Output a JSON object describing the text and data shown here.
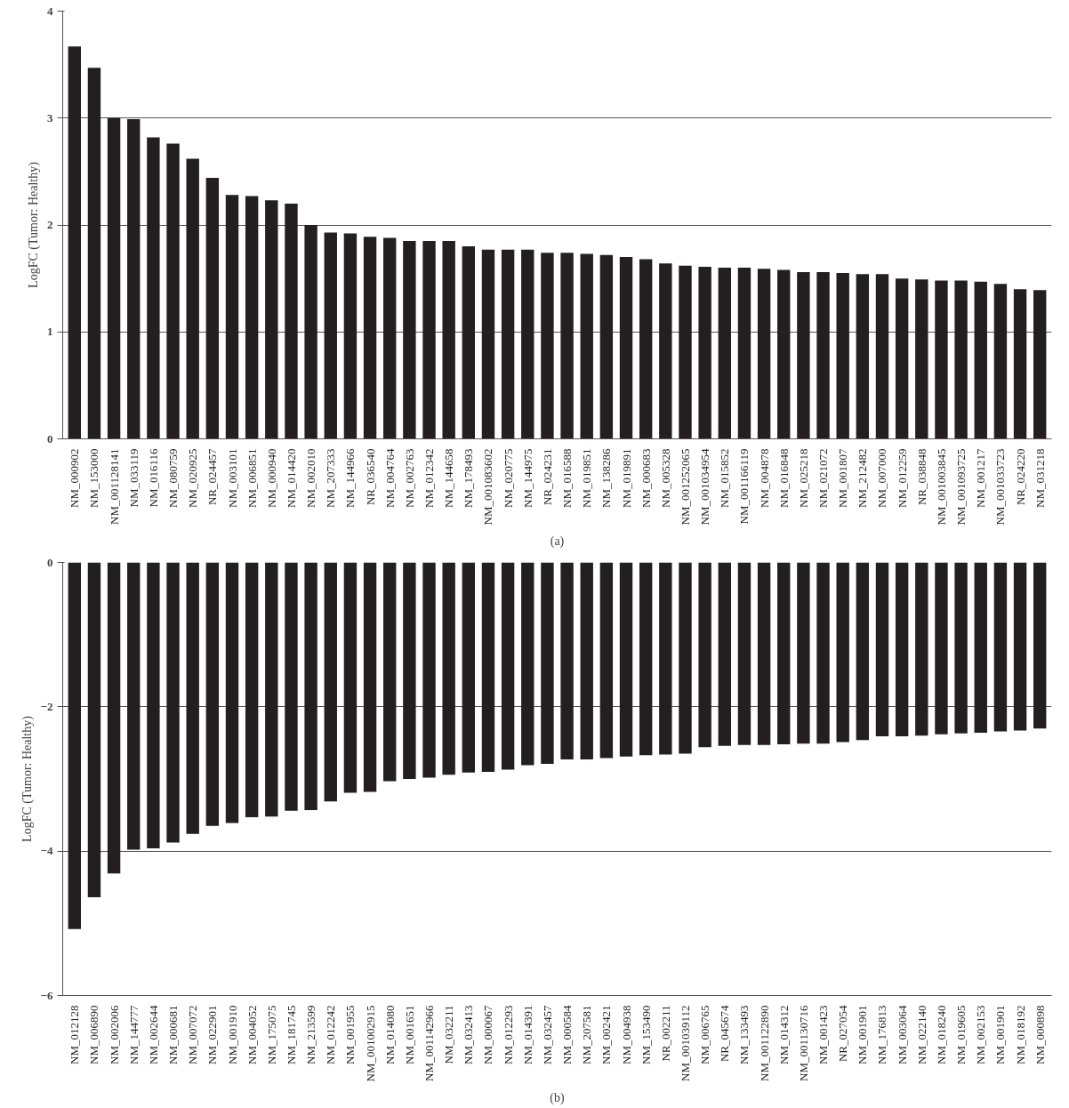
{
  "chart_data": [
    {
      "type": "bar",
      "ylabel": "LogFC (Tumor: Healthy)",
      "color": "#231f20",
      "grid": "y",
      "ylim": [
        0,
        4
      ],
      "yticks": [
        0,
        1,
        2,
        3,
        4
      ],
      "annotations": [
        "(a)"
      ],
      "categories": [
        "NM_000902",
        "NM_153000",
        "NM_001128141",
        "NM_033119",
        "NM_016116",
        "NM_080759",
        "NM_020925",
        "NR_024457",
        "NM_003101",
        "NM_006851",
        "NM_000940",
        "NM_014420",
        "NM_002010",
        "NM_207333",
        "NM_144966",
        "NR_036540",
        "NM_004764",
        "NM_002763",
        "NM_012342",
        "NM_144658",
        "NM_178493",
        "NM_001083602",
        "NM_020775",
        "NM_144975",
        "NR_024231",
        "NM_016588",
        "NM_019851",
        "NM_138286",
        "NM_019891",
        "NM_000683",
        "NM_005328",
        "NM_001252065",
        "NM_001034954",
        "NM_015852",
        "NM_001166119",
        "NM_004878",
        "NM_016848",
        "NM_025218",
        "NM_021072",
        "NM_001807",
        "NM_212482",
        "NM_007000",
        "NM_012259",
        "NR_038848",
        "NM_001003845",
        "NM_001093725",
        "NM_001217",
        "NM_001033723",
        "NR_024220",
        "NM_031218"
      ],
      "values": [
        3.67,
        3.47,
        3.0,
        2.99,
        2.82,
        2.76,
        2.62,
        2.44,
        2.28,
        2.27,
        2.23,
        2.2,
        2.0,
        1.93,
        1.92,
        1.89,
        1.88,
        1.85,
        1.85,
        1.85,
        1.8,
        1.77,
        1.77,
        1.77,
        1.74,
        1.74,
        1.73,
        1.72,
        1.7,
        1.68,
        1.64,
        1.62,
        1.61,
        1.6,
        1.6,
        1.59,
        1.58,
        1.56,
        1.56,
        1.55,
        1.54,
        1.54,
        1.5,
        1.49,
        1.48,
        1.48,
        1.47,
        1.45,
        1.4,
        1.39
      ]
    },
    {
      "type": "bar",
      "ylabel": "LogFC (Tumor: Healthy)",
      "color": "#231f20",
      "grid": "y",
      "ylim": [
        -6,
        0
      ],
      "yticks": [
        0,
        {
          "value": -2,
          "label": "−2"
        },
        {
          "value": -4,
          "label": "−4"
        },
        {
          "value": -6,
          "label": "−6"
        }
      ],
      "annotations": [
        "(b)"
      ],
      "categories": [
        "NM_012128",
        "NM_006890",
        "NM_002006",
        "NM_144777",
        "NM_002644",
        "NM_000681",
        "NM_007072",
        "NM_022901",
        "NM_001910",
        "NM_004052",
        "NM_175075",
        "NM_181745",
        "NM_213599",
        "NM_012242",
        "NM_001955",
        "NM_001002915",
        "NM_014080",
        "NM_001651",
        "NM_001142966",
        "NM_032211",
        "NM_032413",
        "NM_000067",
        "NM_012293",
        "NM_014391",
        "NM_032457",
        "NM_000584",
        "NM_207581",
        "NM_002421",
        "NM_004938",
        "NM_153490",
        "NR_002211",
        "NM_001039112",
        "NM_006765",
        "NR_045674",
        "NM_133493",
        "NM_001122890",
        "NM_014312",
        "NM_001130716",
        "NM_001423",
        "NR_027054",
        "NM_001901",
        "NM_176813",
        "NM_003064",
        "NM_022140",
        "NM_018240",
        "NM_019605",
        "NM_002153",
        "NM_001901",
        "NM_018192",
        "NM_000898"
      ],
      "values": [
        -5.08,
        -4.64,
        -4.31,
        -3.98,
        -3.96,
        -3.88,
        -3.76,
        -3.65,
        -3.61,
        -3.53,
        -3.52,
        -3.44,
        -3.43,
        -3.31,
        -3.19,
        -3.18,
        -3.03,
        -3.0,
        -2.98,
        -2.94,
        -2.91,
        -2.9,
        -2.87,
        -2.81,
        -2.79,
        -2.73,
        -2.73,
        -2.71,
        -2.69,
        -2.67,
        -2.66,
        -2.65,
        -2.56,
        -2.54,
        -2.53,
        -2.53,
        -2.52,
        -2.51,
        -2.51,
        -2.49,
        -2.46,
        -2.41,
        -2.41,
        -2.4,
        -2.38,
        -2.37,
        -2.36,
        -2.34,
        -2.33,
        -2.3
      ]
    }
  ]
}
